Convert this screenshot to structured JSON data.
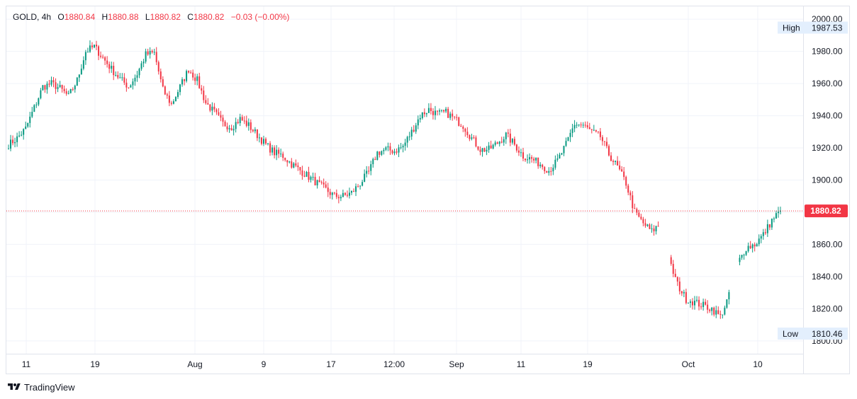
{
  "header": {
    "symbol": "GOLD",
    "interval": "4h",
    "o_label": "O",
    "o_value": "1880.84",
    "h_label": "H",
    "h_value": "1880.88",
    "l_label": "L",
    "l_value": "1880.82",
    "c_label": "C",
    "c_value": "1880.82",
    "change": "−0.03 (−0.00%)"
  },
  "footer": {
    "brand": "TradingView",
    "logo_icon": "tradingview-logo-icon"
  },
  "colors": {
    "up": "#089981",
    "down": "#f23645",
    "grid": "#f0f3fa",
    "last_price": "#f23645",
    "axis_text": "#131722",
    "badge_bg": "#e3effd"
  },
  "chart_data": {
    "type": "candlestick",
    "symbol": "GOLD",
    "interval": "4h",
    "x_ticks": [
      "11",
      "19",
      "Aug",
      "9",
      "17",
      "12:00",
      "Sep",
      "11",
      "19",
      "Oct",
      "10"
    ],
    "y_ticks": [
      "2000.00",
      "1980.00",
      "1960.00",
      "1940.00",
      "1920.00",
      "1900.00",
      "1880.00",
      "1860.00",
      "1840.00",
      "1820.00",
      "1800.00"
    ],
    "ylim": [
      1792,
      2008
    ],
    "grid": true,
    "last_price": 1880.82,
    "last_price_label": "1880.82",
    "high": {
      "label": "High",
      "value": 1987.53,
      "value_label": "1987.53"
    },
    "low": {
      "label": "Low",
      "value": 1810.46,
      "value_label": "1810.46"
    },
    "price_path": [
      1922,
      1926,
      1932,
      1945,
      1958,
      1960,
      1957,
      1952,
      1962,
      1980,
      1983,
      1976,
      1969,
      1963,
      1958,
      1966,
      1978,
      1979,
      1956,
      1947,
      1958,
      1969,
      1962,
      1948,
      1942,
      1935,
      1933,
      1938,
      1934,
      1928,
      1922,
      1917,
      1915,
      1910,
      1906,
      1902,
      1898,
      1894,
      1890,
      1890,
      1892,
      1898,
      1905,
      1917,
      1919,
      1918,
      1921,
      1930,
      1940,
      1944,
      1941,
      1942,
      1938,
      1934,
      1926,
      1919,
      1919,
      1923,
      1928,
      1922,
      1915,
      1913,
      1910,
      1906,
      1912,
      1922,
      1935,
      1934,
      1930,
      1927,
      1916,
      1908,
      1898,
      1880,
      1873,
      1868,
      1873,
      1850,
      1835,
      1826,
      1824,
      1822,
      1820,
      1815,
      1828,
      1848,
      1858,
      1860,
      1866,
      1875,
      1881
    ]
  }
}
